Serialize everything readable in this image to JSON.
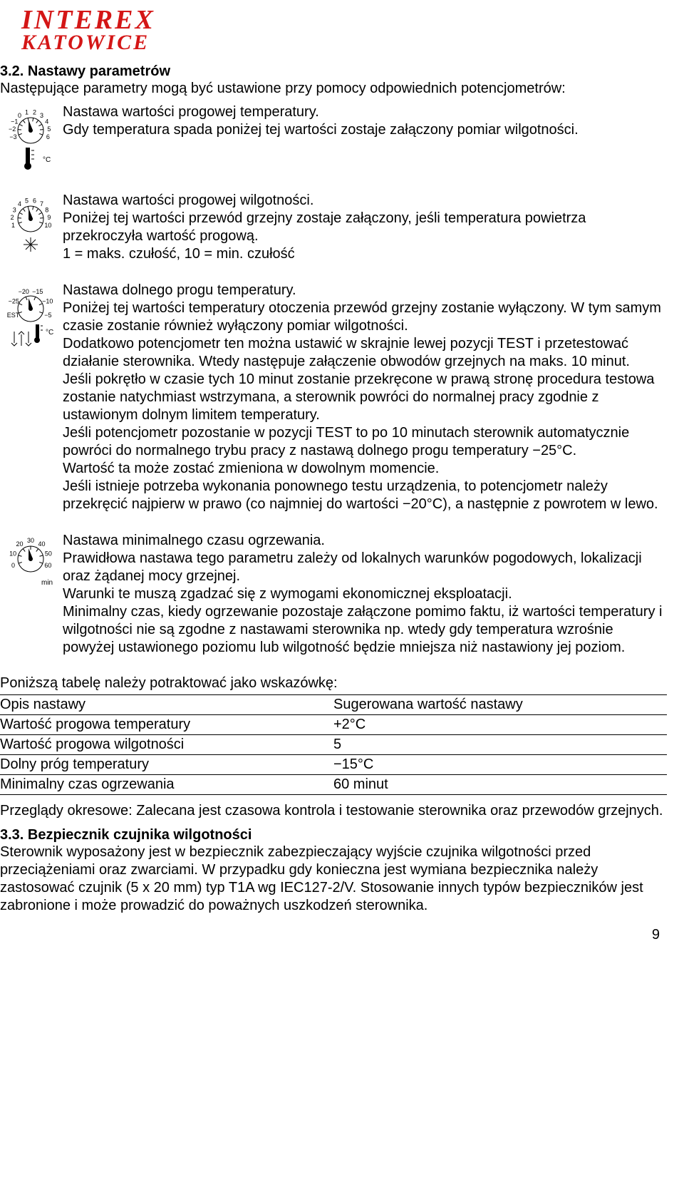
{
  "logo": {
    "line1": "INTEREX",
    "line2": "KATOWICE",
    "color": "#d41616"
  },
  "sec32": {
    "title": "3.2. Nastawy parametrów",
    "intro": "Następujące parametry mogą być ustawione przy pomocy odpowiednich potencjometrów:"
  },
  "dial1": {
    "labels": [
      "−3",
      "−2",
      "−1",
      "0",
      "1",
      "2",
      "3",
      "4",
      "5",
      "6"
    ],
    "unit": "°C",
    "text": "Nastawa wartości progowej temperatury.\nGdy temperatura spada poniżej tej wartości zostaje załączony pomiar wilgotności."
  },
  "dial2": {
    "labels": [
      "1",
      "2",
      "3",
      "4",
      "5",
      "6",
      "7",
      "8",
      "9",
      "10"
    ],
    "text": "Nastawa wartości progowej wilgotności.\nPoniżej tej wartości przewód grzejny zostaje załączony, jeśli temperatura powietrza przekroczyła wartość progową.\n1 = maks. czułość, 10 = min. czułość"
  },
  "dial3": {
    "labels": [
      "EST",
      "−25",
      "−20",
      "−15",
      "−10",
      "−5"
    ],
    "unit": "°C",
    "text": "Nastawa dolnego progu temperatury.\nPoniżej tej wartości temperatury otoczenia przewód grzejny zostanie wyłączony. W tym samym czasie zostanie również wyłączony pomiar wilgotności.\nDodatkowo potencjometr ten można ustawić w skrajnie lewej pozycji TEST i przetestować działanie sterownika. Wtedy następuje załączenie obwodów grzejnych na maks. 10 minut.\nJeśli pokrętło w czasie tych 10 minut zostanie przekręcone w prawą stronę procedura testowa zostanie natychmiast wstrzymana, a sterownik powróci do normalnej pracy zgodnie z ustawionym dolnym limitem temperatury.\nJeśli potencjometr pozostanie w pozycji TEST to po 10 minutach sterownik automatycznie powróci do normalnego trybu pracy z nastawą dolnego progu temperatury −25°C.\nWartość ta może zostać zmieniona w dowolnym momencie.\nJeśli istnieje potrzeba wykonania ponownego testu urządzenia, to potencjometr należy przekręcić najpierw w prawo (co najmniej do wartości −20°C), a następnie z powrotem w lewo."
  },
  "dial4": {
    "labels": [
      "0",
      "10",
      "20",
      "30",
      "40",
      "50",
      "60"
    ],
    "unit": "min",
    "text": "Nastawa minimalnego czasu ogrzewania.\nPrawidłowa nastawa tego parametru zależy od lokalnych warunków pogodowych, lokalizacji oraz żądanej mocy grzejnej.\nWarunki te muszą zgadzać się z wymogami ekonomicznej eksploatacji.\nMinimalny czas, kiedy ogrzewanie pozostaje załączone pomimo faktu, iż wartości temperatury i wilgotności nie są zgodne z nastawami sterownika np. wtedy gdy temperatura wzrośnie powyżej ustawionego poziomu lub wilgotność będzie mniejsza niż nastawiony jej poziom."
  },
  "table": {
    "caption": "Poniższą tabelę należy potraktować jako wskazówkę:",
    "header": [
      "Opis nastawy",
      "Sugerowana wartość nastawy"
    ],
    "rows": [
      [
        "Wartość progowa temperatury",
        "+2°C"
      ],
      [
        "Wartość progowa wilgotności",
        "5"
      ],
      [
        "Dolny próg temperatury",
        "−15°C"
      ],
      [
        "Minimalny czas ogrzewania",
        "60 minut"
      ]
    ]
  },
  "review": "Przeglądy okresowe: Zalecana jest czasowa kontrola i testowanie sterownika oraz przewodów grzejnych.",
  "sec33": {
    "title": "3.3. Bezpiecznik czujnika wilgotności",
    "text": "Sterownik wyposażony jest w bezpiecznik zabezpieczający wyjście czujnika wilgotności przed przeciążeniami oraz zwarciami. W przypadku gdy konieczna jest wymiana bezpiecznika należy zastosować czujnik (5 x 20 mm) typ T1A wg IEC127-2/V. Stosowanie innych typów bezpieczników jest zabronione i może prowadzić do poważnych uszkodzeń sterownika."
  },
  "page_number": "9",
  "style": {
    "dial_stroke": "#000000",
    "dial_stroke_width": 1,
    "label_fontsize": 9
  }
}
